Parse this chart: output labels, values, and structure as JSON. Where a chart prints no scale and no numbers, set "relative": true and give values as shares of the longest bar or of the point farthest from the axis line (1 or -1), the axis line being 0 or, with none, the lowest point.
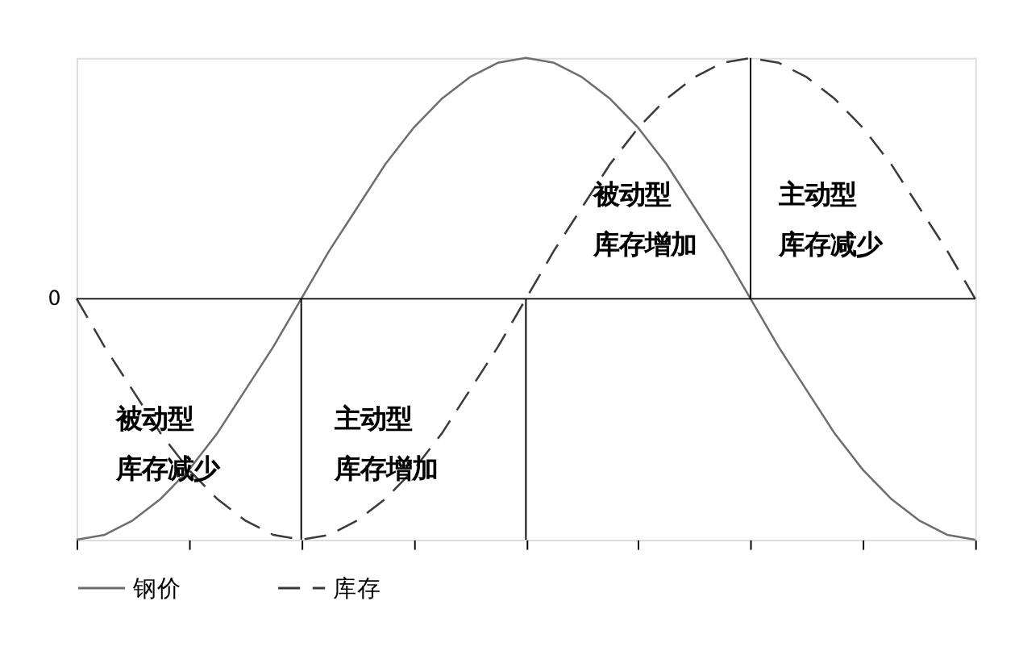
{
  "chart_data": {
    "type": "line",
    "relative": true,
    "marker": "none",
    "grid": false,
    "legend": "bottom",
    "tick_labels": false,
    "categories": [
      null,
      null,
      null,
      null,
      null,
      null,
      null,
      null,
      null,
      null,
      null,
      null,
      null,
      null,
      null,
      null,
      null,
      null,
      null,
      null,
      null,
      null,
      null,
      null,
      null,
      null,
      null,
      null,
      null,
      null,
      null,
      null,
      null
    ],
    "series": [
      {
        "name": "钢价",
        "color": "#6e6e6e",
        "line_style": "solid",
        "values": [
          -1,
          -0.98,
          -0.92,
          -0.83,
          -0.71,
          -0.56,
          -0.38,
          -0.2,
          0,
          0.2,
          0.38,
          0.56,
          0.71,
          0.83,
          0.92,
          0.98,
          1,
          0.98,
          0.92,
          0.83,
          0.71,
          0.56,
          0.38,
          0.2,
          0,
          -0.2,
          -0.38,
          -0.56,
          -0.71,
          -0.83,
          -0.92,
          -0.98,
          -1
        ]
      },
      {
        "name": "库存",
        "color": "#3a3a3a",
        "line_style": "dashed",
        "values": [
          0,
          -0.2,
          -0.38,
          -0.56,
          -0.71,
          -0.83,
          -0.92,
          -0.98,
          -1,
          -0.98,
          -0.92,
          -0.83,
          -0.71,
          -0.56,
          -0.38,
          -0.2,
          0,
          0.2,
          0.38,
          0.56,
          0.71,
          0.83,
          0.92,
          0.98,
          1,
          0.98,
          0.92,
          0.83,
          0.71,
          0.56,
          0.38,
          0.2,
          0
        ]
      }
    ],
    "ref_lines": [
      {
        "axis": "y",
        "value": 0,
        "label": "0",
        "color": "#000000"
      }
    ],
    "annotations": [
      "被动型库存减少",
      "主动型库存增加",
      "被动型库存增加",
      "主动型库存减少"
    ]
  }
}
